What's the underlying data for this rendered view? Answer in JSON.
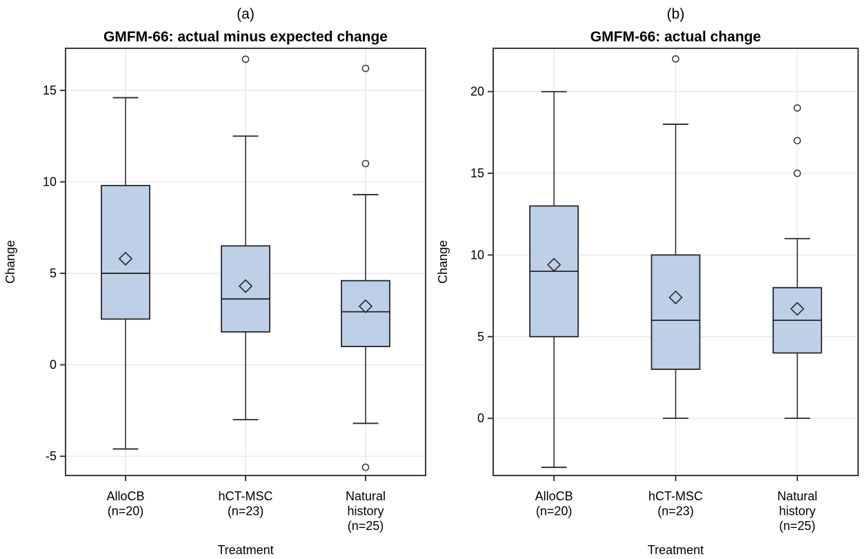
{
  "page": {
    "background": "#ffffff"
  },
  "colors": {
    "box_fill": "#bdd0e8",
    "box_stroke": "#262626",
    "grid": "#e9e9e9",
    "axis": "#3a3a3a",
    "text": "#000000",
    "outlier_fill": "#ffffff"
  },
  "chart_data": [
    {
      "type": "boxplot",
      "panel_label": "(a)",
      "title": "GMFM-66: actual minus expected change",
      "xlabel": "Treatment",
      "ylabel": "Change",
      "ylim": [
        -6.05,
        17.3
      ],
      "yticks": [
        -5,
        0,
        5,
        10,
        15
      ],
      "grid": true,
      "legend": "none",
      "categories": [
        "AlloCB (n=20)",
        "hCT-MSC (n=23)",
        "Natural history (n=25)"
      ],
      "category_lines": [
        [
          "AlloCB",
          "(n=20)"
        ],
        [
          "hCT-MSC",
          "(n=23)"
        ],
        [
          "Natural",
          "history",
          "(n=25)"
        ]
      ],
      "boxes": [
        {
          "label": "AlloCB (n=20)",
          "n": 20,
          "whisker_low": -4.6,
          "q1": 2.5,
          "median": 5.0,
          "mean": 5.8,
          "q3": 9.8,
          "whisker_high": 14.6,
          "outliers": []
        },
        {
          "label": "hCT-MSC (n=23)",
          "n": 23,
          "whisker_low": -3.0,
          "q1": 1.8,
          "median": 3.6,
          "mean": 4.3,
          "q3": 6.5,
          "whisker_high": 12.5,
          "outliers": [
            16.7
          ]
        },
        {
          "label": "Natural history (n=25)",
          "n": 25,
          "whisker_low": -3.2,
          "q1": 1.0,
          "median": 2.9,
          "mean": 3.2,
          "q3": 4.6,
          "whisker_high": 9.3,
          "outliers": [
            16.2,
            11.0,
            -5.6
          ]
        }
      ]
    },
    {
      "type": "boxplot",
      "panel_label": "(b)",
      "title": "GMFM-66: actual change",
      "xlabel": "Treatment",
      "ylabel": "Change",
      "ylim": [
        -3.5,
        22.65
      ],
      "yticks": [
        0,
        5,
        10,
        15,
        20
      ],
      "grid": true,
      "legend": "none",
      "categories": [
        "AlloCB (n=20)",
        "hCT-MSC (n=23)",
        "Natural history (n=25)"
      ],
      "category_lines": [
        [
          "AlloCB",
          "(n=20)"
        ],
        [
          "hCT-MSC",
          "(n=23)"
        ],
        [
          "Natural",
          "history",
          "(n=25)"
        ]
      ],
      "boxes": [
        {
          "label": "AlloCB (n=20)",
          "n": 20,
          "whisker_low": -3.0,
          "q1": 5.0,
          "median": 9.0,
          "mean": 9.4,
          "q3": 13.0,
          "whisker_high": 20.0,
          "outliers": []
        },
        {
          "label": "hCT-MSC (n=23)",
          "n": 23,
          "whisker_low": 0.0,
          "q1": 3.0,
          "median": 6.0,
          "mean": 7.4,
          "q3": 10.0,
          "whisker_high": 18.0,
          "outliers": [
            22.0
          ]
        },
        {
          "label": "Natural history (n=25)",
          "n": 25,
          "whisker_low": 0.0,
          "q1": 4.0,
          "median": 6.0,
          "mean": 6.7,
          "q3": 8.0,
          "whisker_high": 11.0,
          "outliers": [
            19.0,
            17.0,
            15.0
          ]
        }
      ]
    }
  ]
}
